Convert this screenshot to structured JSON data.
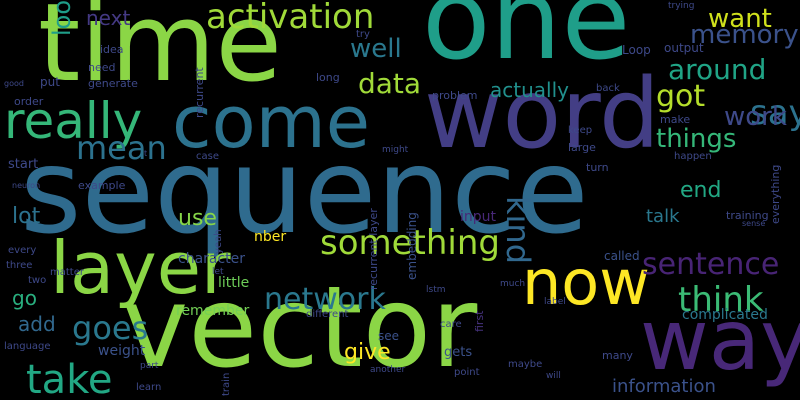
{
  "words": [
    {
      "text": "sequence",
      "color": "#2f6b8e"
    },
    {
      "text": "vector",
      "color": "#8bd646"
    },
    {
      "text": "time",
      "color": "#8bd646"
    },
    {
      "text": "one",
      "color": "#1f9e89"
    },
    {
      "text": "word",
      "color": "#433e85"
    },
    {
      "text": "come",
      "color": "#2c728e"
    },
    {
      "text": "way",
      "color": "#482878"
    },
    {
      "text": "layer",
      "color": "#8bd646"
    },
    {
      "text": "now",
      "color": "#fde725"
    },
    {
      "text": "really",
      "color": "#35b779"
    },
    {
      "text": "something",
      "color": "#a0da39"
    },
    {
      "text": "activation",
      "color": "#a0da39"
    },
    {
      "text": "network",
      "color": "#2a788e"
    },
    {
      "text": "take",
      "color": "#22a884"
    },
    {
      "text": "mean",
      "color": "#2c728e"
    },
    {
      "text": "sentence",
      "color": "#482475"
    },
    {
      "text": "think",
      "color": "#3bbb75"
    },
    {
      "text": "goes",
      "color": "#2a788e"
    },
    {
      "text": "kind",
      "color": "#31688e"
    },
    {
      "text": "say",
      "color": "#2c728e"
    },
    {
      "text": "around",
      "color": "#20a486"
    },
    {
      "text": "got",
      "color": "#b5de2b"
    },
    {
      "text": "data",
      "color": "#a0da39"
    },
    {
      "text": "want",
      "color": "#d0e11c"
    },
    {
      "text": "things",
      "color": "#35b779"
    },
    {
      "text": "work",
      "color": "#3e4989"
    },
    {
      "text": "memory",
      "color": "#3b528b"
    },
    {
      "text": "well",
      "color": "#2a788e"
    },
    {
      "text": "look",
      "color": "#1f9e89"
    },
    {
      "text": "give",
      "color": "#fde725"
    },
    {
      "text": "lot",
      "color": "#2c728e"
    },
    {
      "text": "end",
      "color": "#22a884"
    },
    {
      "text": "use",
      "color": "#86d549"
    },
    {
      "text": "add",
      "color": "#31688e"
    },
    {
      "text": "next",
      "color": "#443983"
    },
    {
      "text": "actually",
      "color": "#21908d"
    },
    {
      "text": "talk",
      "color": "#2a788e"
    },
    {
      "text": "go",
      "color": "#29af7f"
    },
    {
      "text": "information",
      "color": "#3b528b"
    },
    {
      "text": "complicated",
      "color": "#2a788e"
    },
    {
      "text": "remember",
      "color": "#73d056"
    },
    {
      "text": "little",
      "color": "#6ece58"
    },
    {
      "text": "nber",
      "color": "#fde725"
    },
    {
      "text": "character",
      "color": "#3b528b"
    },
    {
      "text": "called",
      "color": "#3b528b"
    },
    {
      "text": "input",
      "color": "#482878"
    },
    {
      "text": "weight",
      "color": "#3b528b"
    },
    {
      "text": "embedding",
      "color": "#3b528b"
    },
    {
      "text": "recurrent layer",
      "color": "#3e4989"
    },
    {
      "text": "recurrent",
      "color": "#3e4989"
    },
    {
      "text": "first",
      "color": "#46327e"
    },
    {
      "text": "gets",
      "color": "#3b528b"
    },
    {
      "text": "see",
      "color": "#3b528b"
    },
    {
      "text": "output",
      "color": "#3e4989"
    },
    {
      "text": "Loop",
      "color": "#3e4989"
    },
    {
      "text": "make",
      "color": "#3e4989"
    },
    {
      "text": "keep",
      "color": "#3e4989"
    },
    {
      "text": "large",
      "color": "#3e4989"
    },
    {
      "text": "turn",
      "color": "#3e4989"
    },
    {
      "text": "happen",
      "color": "#3e4989"
    },
    {
      "text": "training",
      "color": "#3e4989"
    },
    {
      "text": "everything",
      "color": "#3e4989"
    },
    {
      "text": "sense",
      "color": "#3e4989"
    },
    {
      "text": "trying",
      "color": "#3e4989"
    },
    {
      "text": "need",
      "color": "#3e4989"
    },
    {
      "text": "generate",
      "color": "#3e4989"
    },
    {
      "text": "idea",
      "color": "#3e4989"
    },
    {
      "text": "put",
      "color": "#3e4989"
    },
    {
      "text": "order",
      "color": "#3e4989"
    },
    {
      "text": "start",
      "color": "#3e4989"
    },
    {
      "text": "example",
      "color": "#3e4989"
    },
    {
      "text": "neuron",
      "color": "#3e4989"
    },
    {
      "text": "good",
      "color": "#3e4989"
    },
    {
      "text": "every",
      "color": "#3e4989"
    },
    {
      "text": "three",
      "color": "#3e4989"
    },
    {
      "text": "two",
      "color": "#3e4989"
    },
    {
      "text": "matter",
      "color": "#3e4989"
    },
    {
      "text": "language",
      "color": "#3e4989"
    },
    {
      "text": "part",
      "color": "#3e4989"
    },
    {
      "text": "learn",
      "color": "#3e4989"
    },
    {
      "text": "train",
      "color": "#3e4989"
    },
    {
      "text": "another",
      "color": "#3e4989"
    },
    {
      "text": "point",
      "color": "#3e4989"
    },
    {
      "text": "maybe",
      "color": "#3e4989"
    },
    {
      "text": "many",
      "color": "#3e4989"
    },
    {
      "text": "will",
      "color": "#3e4989"
    },
    {
      "text": "label",
      "color": "#3e4989"
    },
    {
      "text": "care",
      "color": "#3e4989"
    },
    {
      "text": "lstm",
      "color": "#3e4989"
    },
    {
      "text": "different",
      "color": "#3e4989"
    },
    {
      "text": "much",
      "color": "#3e4989"
    },
    {
      "text": "let",
      "color": "#3e4989"
    },
    {
      "text": "yeah",
      "color": "#3e4989"
    },
    {
      "text": "case",
      "color": "#3e4989"
    },
    {
      "text": "might",
      "color": "#3e4989"
    },
    {
      "text": "problem",
      "color": "#3e4989"
    },
    {
      "text": "back",
      "color": "#3e4989"
    },
    {
      "text": "long",
      "color": "#3e4989"
    },
    {
      "text": "try",
      "color": "#3e4989"
    },
    {
      "text": "t",
      "color": "#3e4989"
    }
  ]
}
